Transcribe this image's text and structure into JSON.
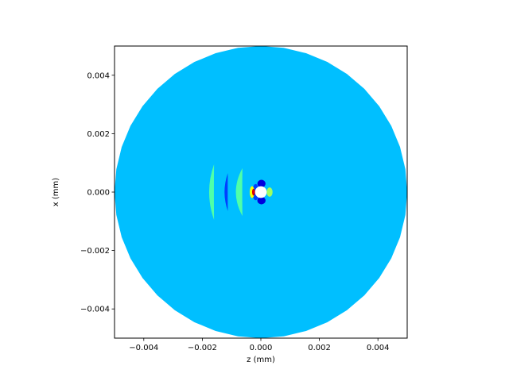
{
  "chart_data": {
    "type": "heatmap",
    "title": "",
    "xlabel": "z (mm)",
    "ylabel": "x (mm)",
    "xlim": [
      -0.005,
      0.005
    ],
    "ylim": [
      -0.005,
      0.005
    ],
    "x_ticks": [
      -0.004,
      -0.002,
      0.0,
      0.002,
      0.004
    ],
    "y_ticks": [
      -0.004,
      -0.002,
      0.0,
      0.002,
      0.004
    ],
    "x_tick_labels": [
      "−0.004",
      "−0.002",
      "0.000",
      "0.002",
      "0.004"
    ],
    "y_tick_labels": [
      "−0.004",
      "−0.002",
      "0.000",
      "0.002",
      "0.004"
    ],
    "grid": false,
    "colormap": "jet",
    "domain": {
      "shape": "disk",
      "center": [
        0,
        0
      ],
      "radius": 0.005,
      "polygon_sides": 40
    },
    "background_color": "#00bfff",
    "hole": {
      "center": [
        0,
        0
      ],
      "radius": 0.0002
    },
    "features": [
      {
        "kind": "arc-band",
        "color": "#4fffa8",
        "z_center": -0.0016,
        "x_half_extent": 0.00095,
        "z_half_width": 0.00012
      },
      {
        "kind": "arc-band",
        "color": "#0040ff",
        "z_center": -0.00113,
        "x_half_extent": 0.00065,
        "z_half_width": 8e-05
      },
      {
        "kind": "arc-band",
        "color": "#4fffa8",
        "z_center": -0.00063,
        "x_half_extent": 0.00082,
        "z_half_width": 0.00016
      },
      {
        "kind": "lobe",
        "color": "#0000dd",
        "z_center": 2e-05,
        "x_center": 0.00029,
        "z_radius": 0.00014,
        "x_radius": 0.00013
      },
      {
        "kind": "lobe",
        "color": "#0000dd",
        "z_center": 2e-05,
        "x_center": -0.00029,
        "z_radius": 0.00014,
        "x_radius": 0.00013
      },
      {
        "kind": "lobe",
        "color": "#0040ff",
        "z_center": -0.00018,
        "x_center": 0.0,
        "z_radius": 0.00011,
        "x_radius": 0.00028
      },
      {
        "kind": "lobe",
        "color": "#ffff00",
        "z_center": -0.0003,
        "x_center": 0.0,
        "z_radius": 8e-05,
        "x_radius": 0.0002
      },
      {
        "kind": "lobe",
        "color": "#dd0000",
        "z_center": -0.00025,
        "x_center": 0.0,
        "z_radius": 5e-05,
        "x_radius": 0.00012
      },
      {
        "kind": "lobe",
        "color": "#a0ff60",
        "z_center": 0.0003,
        "x_center": 0.0,
        "z_radius": 0.0001,
        "x_radius": 0.00016
      }
    ]
  }
}
